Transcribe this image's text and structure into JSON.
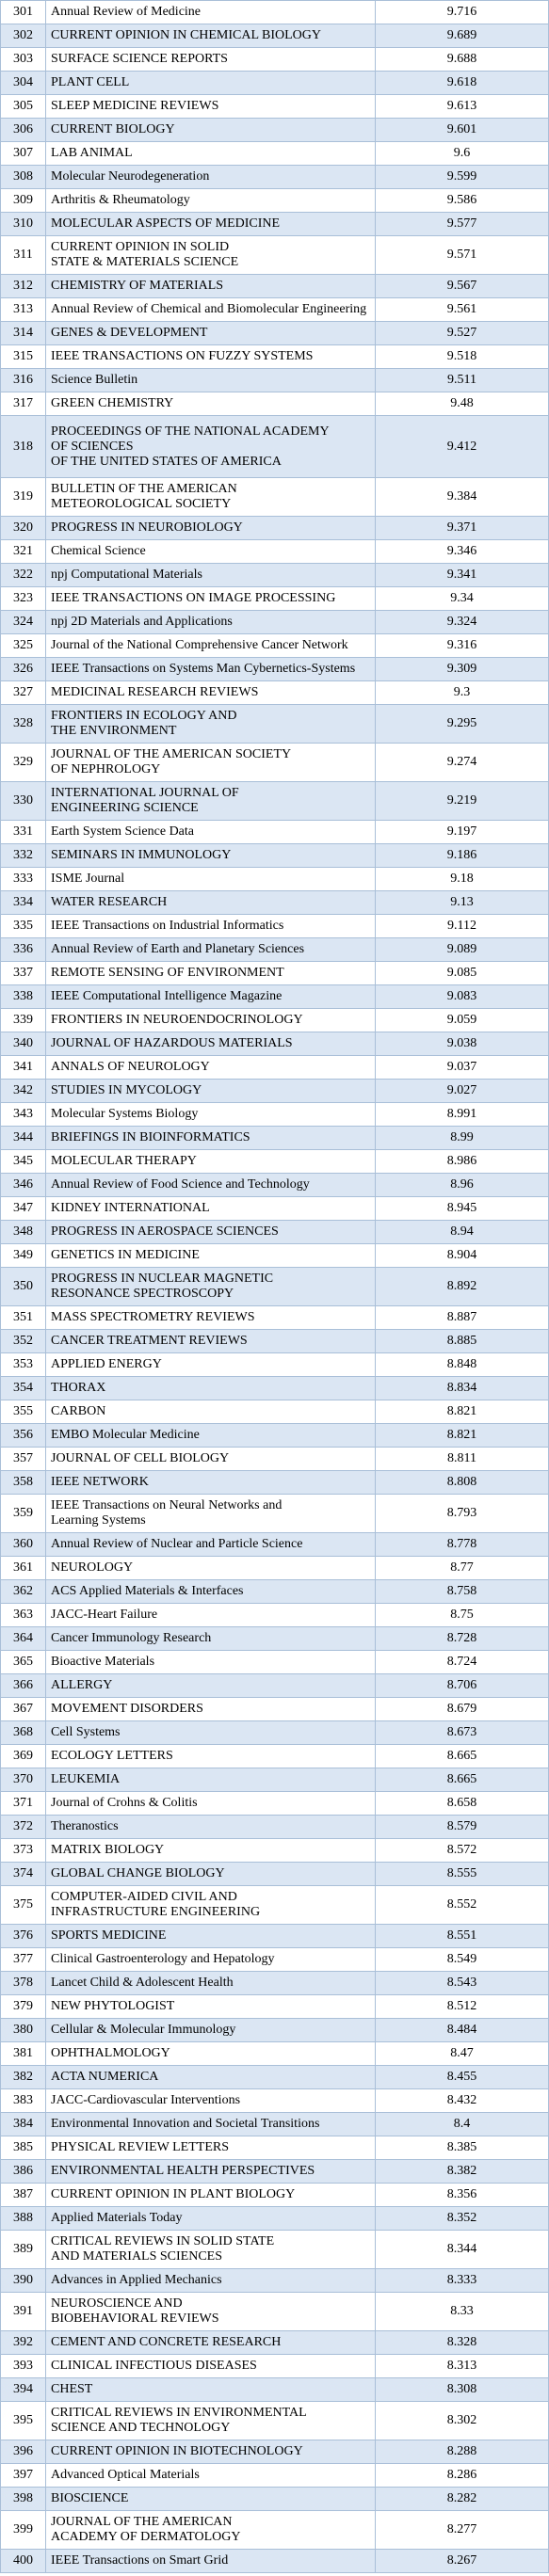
{
  "table": {
    "rows": [
      [
        301,
        "Annual Review of Medicine",
        9.716
      ],
      [
        302,
        "CURRENT OPINION IN CHEMICAL BIOLOGY",
        9.689
      ],
      [
        303,
        "SURFACE SCIENCE REPORTS",
        9.688
      ],
      [
        304,
        "PLANT CELL",
        9.618
      ],
      [
        305,
        "SLEEP MEDICINE REVIEWS",
        9.613
      ],
      [
        306,
        "CURRENT BIOLOGY",
        9.601
      ],
      [
        307,
        "LAB ANIMAL",
        9.6
      ],
      [
        308,
        "Molecular Neurodegeneration",
        9.599
      ],
      [
        309,
        "Arthritis & Rheumatology",
        9.586
      ],
      [
        310,
        "MOLECULAR ASPECTS OF MEDICINE",
        9.577
      ],
      [
        311,
        "CURRENT OPINION IN SOLID\nSTATE & MATERIALS SCIENCE",
        9.571
      ],
      [
        312,
        "CHEMISTRY OF MATERIALS",
        9.567
      ],
      [
        313,
        "Annual Review of Chemical and Biomolecular Engineering",
        9.561
      ],
      [
        314,
        "GENES & DEVELOPMENT",
        9.527
      ],
      [
        315,
        "IEEE TRANSACTIONS ON FUZZY SYSTEMS",
        9.518
      ],
      [
        316,
        "Science Bulletin",
        9.511
      ],
      [
        317,
        "GREEN CHEMISTRY",
        9.48
      ],
      [
        318,
        "PROCEEDINGS OF THE NATIONAL ACADEMY\nOF SCIENCES\nOF THE UNITED STATES OF AMERICA",
        9.412
      ],
      [
        319,
        "BULLETIN OF THE AMERICAN\nMETEOROLOGICAL SOCIETY",
        9.384
      ],
      [
        320,
        "PROGRESS IN NEUROBIOLOGY",
        9.371
      ],
      [
        321,
        "Chemical Science",
        9.346
      ],
      [
        322,
        "npj Computational Materials",
        9.341
      ],
      [
        323,
        "IEEE TRANSACTIONS ON IMAGE PROCESSING",
        9.34
      ],
      [
        324,
        "npj 2D Materials and Applications",
        9.324
      ],
      [
        325,
        "Journal of the National Comprehensive Cancer Network",
        9.316
      ],
      [
        326,
        "IEEE Transactions on Systems Man Cybernetics-Systems",
        9.309
      ],
      [
        327,
        "MEDICINAL RESEARCH REVIEWS",
        9.3
      ],
      [
        328,
        "FRONTIERS IN ECOLOGY AND\nTHE ENVIRONMENT",
        9.295
      ],
      [
        329,
        "JOURNAL OF THE AMERICAN SOCIETY\nOF NEPHROLOGY",
        9.274
      ],
      [
        330,
        "INTERNATIONAL JOURNAL OF\nENGINEERING SCIENCE",
        9.219
      ],
      [
        331,
        "Earth System Science Data",
        9.197
      ],
      [
        332,
        "SEMINARS IN IMMUNOLOGY",
        9.186
      ],
      [
        333,
        "ISME Journal",
        9.18
      ],
      [
        334,
        "WATER RESEARCH",
        9.13
      ],
      [
        335,
        "IEEE Transactions on Industrial Informatics",
        9.112
      ],
      [
        336,
        "Annual Review of Earth and Planetary Sciences",
        9.089
      ],
      [
        337,
        "REMOTE SENSING OF ENVIRONMENT",
        9.085
      ],
      [
        338,
        "IEEE Computational Intelligence Magazine",
        9.083
      ],
      [
        339,
        "FRONTIERS IN NEUROENDOCRINOLOGY",
        9.059
      ],
      [
        340,
        "JOURNAL OF HAZARDOUS MATERIALS",
        9.038
      ],
      [
        341,
        "ANNALS OF NEUROLOGY",
        9.037
      ],
      [
        342,
        "STUDIES IN MYCOLOGY",
        9.027
      ],
      [
        343,
        "Molecular Systems Biology",
        8.991
      ],
      [
        344,
        "BRIEFINGS IN BIOINFORMATICS",
        8.99
      ],
      [
        345,
        "MOLECULAR THERAPY",
        8.986
      ],
      [
        346,
        "Annual Review of Food Science and Technology",
        8.96
      ],
      [
        347,
        "KIDNEY INTERNATIONAL",
        8.945
      ],
      [
        348,
        "PROGRESS IN AEROSPACE SCIENCES",
        8.94
      ],
      [
        349,
        "GENETICS IN MEDICINE",
        8.904
      ],
      [
        350,
        "PROGRESS IN NUCLEAR MAGNETIC\nRESONANCE SPECTROSCOPY",
        8.892
      ],
      [
        351,
        "MASS SPECTROMETRY REVIEWS",
        8.887
      ],
      [
        352,
        "CANCER TREATMENT REVIEWS",
        8.885
      ],
      [
        353,
        "APPLIED ENERGY",
        8.848
      ],
      [
        354,
        "THORAX",
        8.834
      ],
      [
        355,
        "CARBON",
        8.821
      ],
      [
        356,
        "EMBO Molecular Medicine",
        8.821
      ],
      [
        357,
        "JOURNAL OF CELL BIOLOGY",
        8.811
      ],
      [
        358,
        "IEEE NETWORK",
        8.808
      ],
      [
        359,
        "IEEE Transactions on Neural Networks and\nLearning Systems",
        8.793
      ],
      [
        360,
        "Annual Review of Nuclear and Particle Science",
        8.778
      ],
      [
        361,
        "NEUROLOGY",
        8.77
      ],
      [
        362,
        "ACS Applied Materials & Interfaces",
        8.758
      ],
      [
        363,
        "JACC-Heart Failure",
        8.75
      ],
      [
        364,
        "Cancer Immunology Research",
        8.728
      ],
      [
        365,
        "Bioactive Materials",
        8.724
      ],
      [
        366,
        "ALLERGY",
        8.706
      ],
      [
        367,
        "MOVEMENT DISORDERS",
        8.679
      ],
      [
        368,
        "Cell Systems",
        8.673
      ],
      [
        369,
        "ECOLOGY LETTERS",
        8.665
      ],
      [
        370,
        "LEUKEMIA",
        8.665
      ],
      [
        371,
        "Journal of Crohns & Colitis",
        8.658
      ],
      [
        372,
        "Theranostics",
        8.579
      ],
      [
        373,
        "MATRIX BIOLOGY",
        8.572
      ],
      [
        374,
        "GLOBAL CHANGE BIOLOGY",
        8.555
      ],
      [
        375,
        "COMPUTER-AIDED CIVIL AND\nINFRASTRUCTURE ENGINEERING",
        8.552
      ],
      [
        376,
        "SPORTS MEDICINE",
        8.551
      ],
      [
        377,
        "Clinical Gastroenterology and Hepatology",
        8.549
      ],
      [
        378,
        "Lancet Child & Adolescent Health",
        8.543
      ],
      [
        379,
        "NEW PHYTOLOGIST",
        8.512
      ],
      [
        380,
        "Cellular & Molecular Immunology",
        8.484
      ],
      [
        381,
        "OPHTHALMOLOGY",
        8.47
      ],
      [
        382,
        "ACTA NUMERICA",
        8.455
      ],
      [
        383,
        "JACC-Cardiovascular Interventions",
        8.432
      ],
      [
        384,
        "Environmental Innovation and Societal Transitions",
        8.4
      ],
      [
        385,
        "PHYSICAL REVIEW LETTERS",
        8.385
      ],
      [
        386,
        "ENVIRONMENTAL HEALTH PERSPECTIVES",
        8.382
      ],
      [
        387,
        "CURRENT OPINION IN PLANT BIOLOGY",
        8.356
      ],
      [
        388,
        "Applied Materials Today",
        8.352
      ],
      [
        389,
        "CRITICAL REVIEWS IN SOLID STATE\nAND MATERIALS SCIENCES",
        8.344
      ],
      [
        390,
        "Advances in Applied Mechanics",
        8.333
      ],
      [
        391,
        "NEUROSCIENCE AND\nBIOBEHAVIORAL REVIEWS",
        8.33
      ],
      [
        392,
        "CEMENT AND CONCRETE RESEARCH",
        8.328
      ],
      [
        393,
        "CLINICAL INFECTIOUS DISEASES",
        8.313
      ],
      [
        394,
        "CHEST",
        8.308
      ],
      [
        395,
        "CRITICAL REVIEWS IN ENVIRONMENTAL\nSCIENCE AND TECHNOLOGY",
        8.302
      ],
      [
        396,
        "CURRENT OPINION IN BIOTECHNOLOGY",
        8.288
      ],
      [
        397,
        "Advanced Optical Materials",
        8.286
      ],
      [
        398,
        "BIOSCIENCE",
        8.282
      ],
      [
        399,
        "JOURNAL OF THE AMERICAN\nACADEMY OF DERMATOLOGY",
        8.277
      ],
      [
        400,
        "IEEE Transactions on Smart Grid",
        8.267
      ]
    ]
  }
}
